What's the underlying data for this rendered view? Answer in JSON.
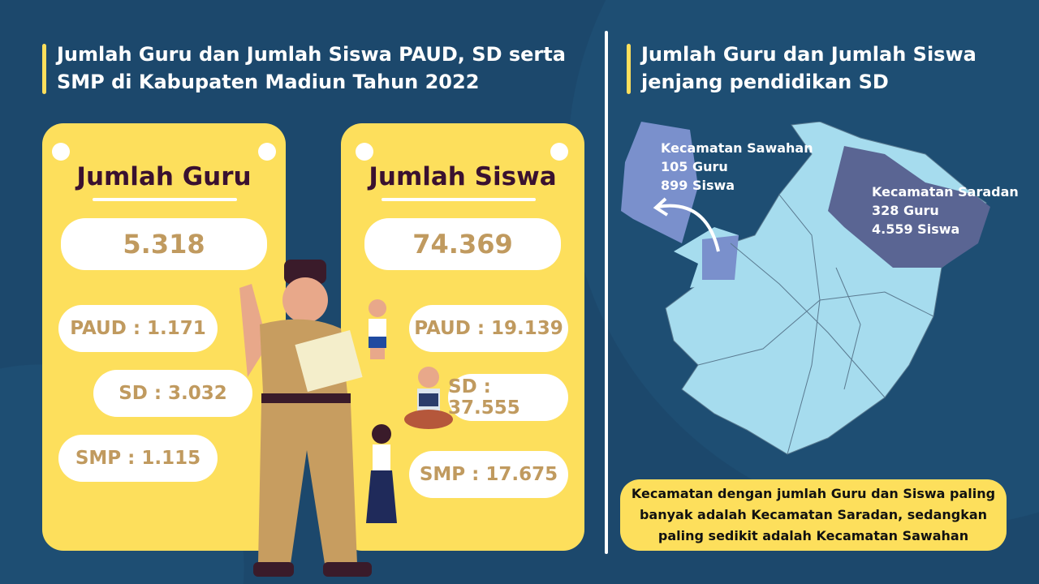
{
  "left": {
    "title": "Jumlah Guru dan Jumlah Siswa PAUD, SD serta SMP di Kabupaten Madiun Tahun 2022",
    "guru": {
      "heading": "Jumlah Guru",
      "total": "5.318",
      "paud": "PAUD : 1.171",
      "sd": "SD : 3.032",
      "smp": "SMP : 1.115"
    },
    "siswa": {
      "heading": "Jumlah Siswa",
      "total": "74.369",
      "paud": "PAUD : 19.139",
      "sd": "SD : 37.555",
      "smp": "SMP : 17.675"
    }
  },
  "right": {
    "title": "Jumlah Guru dan Jumlah Siswa jenjang pendidikan SD",
    "sawahan": {
      "name": "Kecamatan Sawahan",
      "guru": "105 Guru",
      "siswa": "899 Siswa"
    },
    "saradan": {
      "name": "Kecamatan Saradan",
      "guru": "328 Guru",
      "siswa": "4.559 Siswa"
    },
    "note": "Kecamatan dengan jumlah Guru dan Siswa paling banyak adalah Kecamatan Saradan, sedangkan paling sedikit adalah Kecamatan Sawahan"
  },
  "colors": {
    "background": "#1c486c",
    "card": "#fddf5c",
    "number": "#c09a5f",
    "heading": "#3a1130",
    "map": "#a6dcee",
    "sawahan": "#7a90cc",
    "saradan": "#5a6593"
  }
}
